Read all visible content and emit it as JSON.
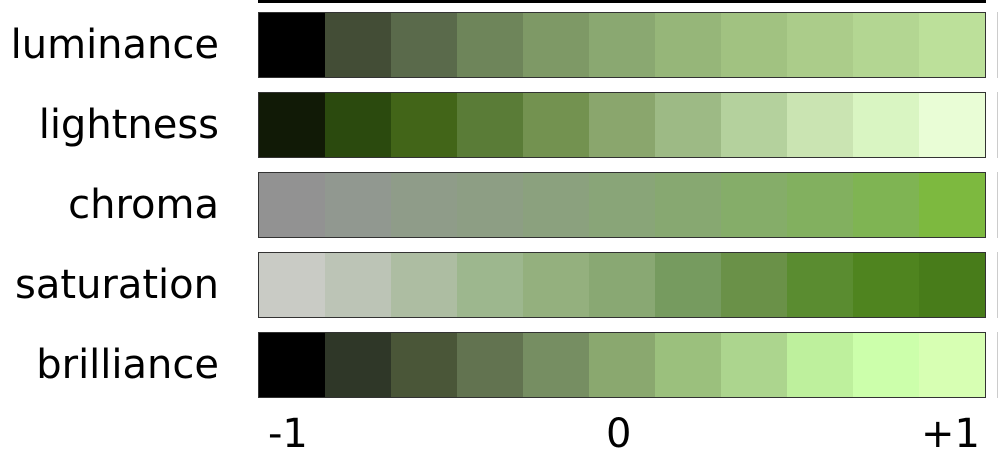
{
  "rows": [
    {
      "label": "luminance",
      "colors": [
        "#000000",
        "#434d36",
        "#5a6a4b",
        "#6e855a",
        "#7e9966",
        "#8aa871",
        "#96b679",
        "#a1c281",
        "#abcc8a",
        "#b3d692",
        "#bce09a"
      ]
    },
    {
      "label": "lightness",
      "colors": [
        "#111a06",
        "#2b4a0e",
        "#426518",
        "#5a7c37",
        "#739250",
        "#8aa66d",
        "#9dba85",
        "#b4d19d",
        "#cae4b2",
        "#d9f5c2",
        "#e9fdd6"
      ]
    },
    {
      "label": "chroma",
      "colors": [
        "#929292",
        "#919890",
        "#8f9c89",
        "#8d9e84",
        "#8ba17e",
        "#89a578",
        "#87a871",
        "#85ad69",
        "#82b05f",
        "#7fb453",
        "#7db93f"
      ]
    },
    {
      "label": "saturation",
      "colors": [
        "#c9cbc5",
        "#bcc4b6",
        "#adbda2",
        "#9db78e",
        "#94b07e",
        "#89a873",
        "#769b5f",
        "#6a9148",
        "#5a8c30",
        "#4f841f",
        "#487c1a"
      ]
    },
    {
      "label": "brilliance",
      "colors": [
        "#000000",
        "#2f3728",
        "#4a5638",
        "#627350",
        "#768e62",
        "#8aa86f",
        "#9bc07d",
        "#acd58e",
        "#bef09d",
        "#ccffab",
        "#d7ffb3"
      ]
    }
  ],
  "axis": {
    "min_label": "-1",
    "mid_label": "0",
    "max_label": "+1"
  }
}
